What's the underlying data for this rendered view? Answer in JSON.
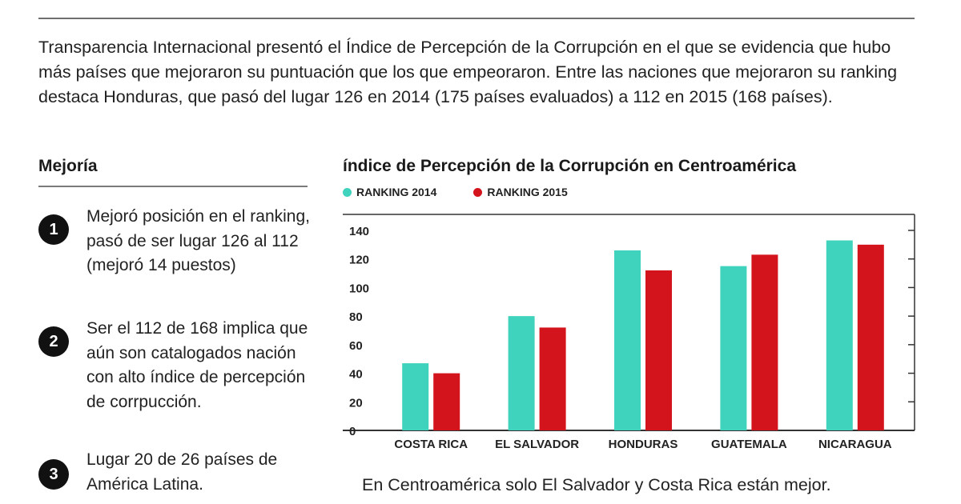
{
  "intro": "Transparencia Internacional presentó el Índice de Percepción de la Corrupción en el que se evidencia que hubo más países que mejoraron su puntuación que los que empeoraron. Entre las naciones que mejoraron su ranking destaca Honduras, que pasó del lugar 126 en 2014 (175 países evaluados) a 112 en 2015 (168 países).",
  "sidebar": {
    "title": "Mejoría",
    "points": [
      {
        "number": "1",
        "text": "Mejoró posición en el ranking, pasó de ser lugar 126 al 112 (mejoró 14 puestos)"
      },
      {
        "number": "2",
        "text": "Ser el 112 de 168 implica que aún son catalogados nación con alto índice de percepción de corrpucción."
      },
      {
        "number": "3",
        "text": "Lugar 20 de 26 países de América Latina."
      }
    ]
  },
  "caption": "En Centroamérica solo El Salvador y Costa Rica están mejor.",
  "chart_data": {
    "type": "bar",
    "title": "índice de Percepción de la Corrupción en Centroamérica",
    "categories": [
      "COSTA RICA",
      "EL SALVADOR",
      "HONDURAS",
      "GUATEMALA",
      "NICARAGUA"
    ],
    "series": [
      {
        "name": "RANKING 2014",
        "values": [
          47,
          80,
          126,
          115,
          133
        ],
        "color": "#3fd3bd"
      },
      {
        "name": "RANKING 2015",
        "values": [
          40,
          72,
          112,
          123,
          130
        ],
        "color": "#d4141c"
      }
    ],
    "ylim": [
      0,
      140
    ],
    "yticks": [
      0,
      20,
      40,
      60,
      80,
      100,
      120,
      140
    ],
    "legend_position": "top-left",
    "grid": false
  }
}
